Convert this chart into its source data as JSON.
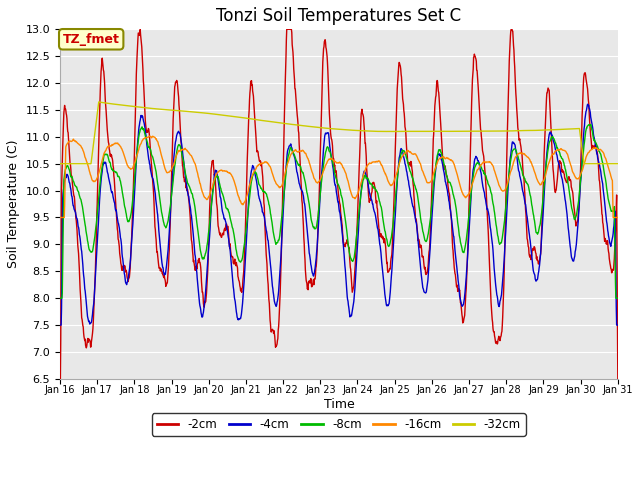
{
  "title": "Tonzi Soil Temperatures Set C",
  "xlabel": "Time",
  "ylabel": "Soil Temperature (C)",
  "ylim": [
    6.5,
    13.0
  ],
  "yticks": [
    6.5,
    7.0,
    7.5,
    8.0,
    8.5,
    9.0,
    9.5,
    10.0,
    10.5,
    11.0,
    11.5,
    12.0,
    12.5,
    13.0
  ],
  "xtick_labels": [
    "Jan 16",
    "Jan 17",
    "Jan 18",
    "Jan 19",
    "Jan 20",
    "Jan 21",
    "Jan 22",
    "Jan 23",
    "Jan 24",
    "Jan 25",
    "Jan 26",
    "Jan 27",
    "Jan 28",
    "Jan 29",
    "Jan 30",
    "Jan 31"
  ],
  "line_colors": [
    "#cc0000",
    "#0000cc",
    "#00bb00",
    "#ff8800",
    "#cccc00"
  ],
  "line_labels": [
    "-2cm",
    "-4cm",
    "-8cm",
    "-16cm",
    "-32cm"
  ],
  "legend_box_color": "#ffffff",
  "legend_border_color": "#000000",
  "annotation_text": "TZ_fmet",
  "annotation_color": "#cc0000",
  "annotation_bg": "#ffffcc",
  "annotation_border": "#888800",
  "plot_bg": "#e8e8e8",
  "grid_color": "#ffffff",
  "title_fontsize": 12
}
